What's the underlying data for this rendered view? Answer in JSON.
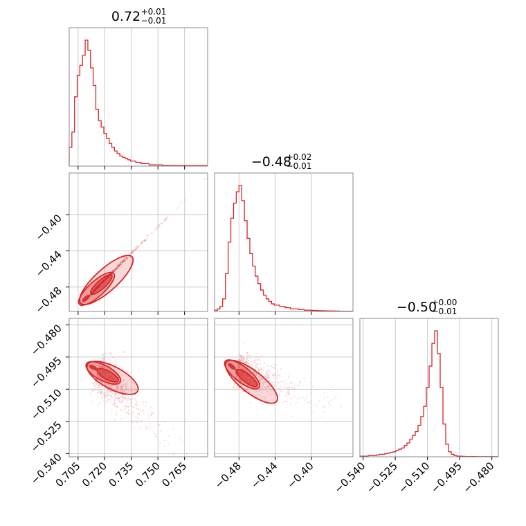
{
  "chart_data": {
    "type": "corner",
    "color": "#d62728",
    "grid": true,
    "parameters": [
      {
        "title_value": "0.72",
        "title_plus": "+0.01",
        "title_minus": "−0.01",
        "range": [
          0.7,
          0.778
        ],
        "ticks": [
          0.705,
          0.72,
          0.735,
          0.75,
          0.765
        ],
        "tick_labels": [
          "0.705",
          "0.720",
          "0.735",
          "0.750",
          "0.765"
        ]
      },
      {
        "title_value": "−0.48",
        "title_plus": "+0.02",
        "title_minus": "−0.01",
        "range": [
          -0.507,
          -0.354
        ],
        "ticks": [
          -0.48,
          -0.44,
          -0.4
        ],
        "tick_labels": [
          "−0.48",
          "−0.44",
          "−0.40"
        ],
        "row_ticks": [
          -0.48,
          -0.44,
          -0.4
        ],
        "row_tick_labels": [
          "−0.48",
          "−0.44",
          "−0.40"
        ]
      },
      {
        "title_value": "−0.50",
        "title_plus": "+0.00",
        "title_minus": "−0.01",
        "range": [
          -0.5415,
          -0.477
        ],
        "ticks": [
          -0.54,
          -0.525,
          -0.51,
          -0.495,
          -0.48
        ],
        "tick_labels": [
          "−0.540",
          "−0.525",
          "−0.510",
          "−0.495",
          "−0.480"
        ]
      }
    ],
    "histograms": [
      {
        "param": 0,
        "bin_start": 0.7,
        "bin_width": 0.0015,
        "counts": [
          0.15,
          0.27,
          0.55,
          0.72,
          0.8,
          0.88,
          1.0,
          0.92,
          0.78,
          0.64,
          0.45,
          0.36,
          0.31,
          0.26,
          0.22,
          0.18,
          0.15,
          0.12,
          0.1,
          0.08,
          0.07,
          0.06,
          0.05,
          0.04,
          0.04,
          0.03,
          0.03,
          0.02,
          0.02,
          0.02,
          0.01,
          0.01,
          0.01,
          0.01,
          0.01,
          0.005,
          0.005,
          0.005,
          0.005,
          0.005,
          0.005,
          0.005,
          0.005,
          0.005,
          0.005,
          0.005,
          0.005,
          0.005,
          0.005,
          0.005,
          0.005,
          0.005
        ]
      },
      {
        "param": 1,
        "bin_start": -0.507,
        "bin_width": 0.003,
        "counts": [
          0.01,
          0.02,
          0.04,
          0.1,
          0.3,
          0.55,
          0.74,
          0.86,
          0.95,
          1.0,
          0.88,
          0.72,
          0.58,
          0.46,
          0.36,
          0.28,
          0.22,
          0.17,
          0.13,
          0.1,
          0.08,
          0.06,
          0.05,
          0.05,
          0.04,
          0.04,
          0.03,
          0.03,
          0.02,
          0.02,
          0.02,
          0.015,
          0.015,
          0.01,
          0.01,
          0.01,
          0.008,
          0.008,
          0.006,
          0.006,
          0.005,
          0.005,
          0.004,
          0.004,
          0.003,
          0.003,
          0.002,
          0.002,
          0.002,
          0.002,
          0.002
        ]
      },
      {
        "param": 2,
        "bin_start": -0.5415,
        "bin_width": 0.00129,
        "counts": [
          0.005,
          0.005,
          0.005,
          0.01,
          0.01,
          0.01,
          0.015,
          0.02,
          0.02,
          0.025,
          0.03,
          0.035,
          0.04,
          0.05,
          0.06,
          0.07,
          0.09,
          0.11,
          0.14,
          0.17,
          0.2,
          0.25,
          0.32,
          0.4,
          0.55,
          0.72,
          0.9,
          1.0,
          0.82,
          0.55,
          0.26,
          0.1,
          0.04,
          0.02,
          0.01,
          0.005,
          0.005,
          0.003,
          0.002,
          0.002,
          0.002,
          0.002,
          0.001,
          0.001,
          0.001,
          0.001,
          0.001,
          0.001,
          0.001,
          0.001
        ]
      }
    ],
    "scatter_panels": [
      {
        "x_param": 0,
        "y_param": 1,
        "center": [
          0.712,
          -0.488
        ],
        "spread_major": 0.018,
        "spread_minor": 0.004,
        "correlation": "positive"
      },
      {
        "x_param": 0,
        "y_param": 2,
        "center": [
          0.716,
          -0.501
        ],
        "spread_major": 0.016,
        "spread_minor": 0.004,
        "correlation": "negative"
      },
      {
        "x_param": 1,
        "y_param": 2,
        "center": [
          -0.483,
          -0.501
        ],
        "spread_major": 0.038,
        "spread_minor": 0.004,
        "correlation": "negative"
      }
    ]
  }
}
